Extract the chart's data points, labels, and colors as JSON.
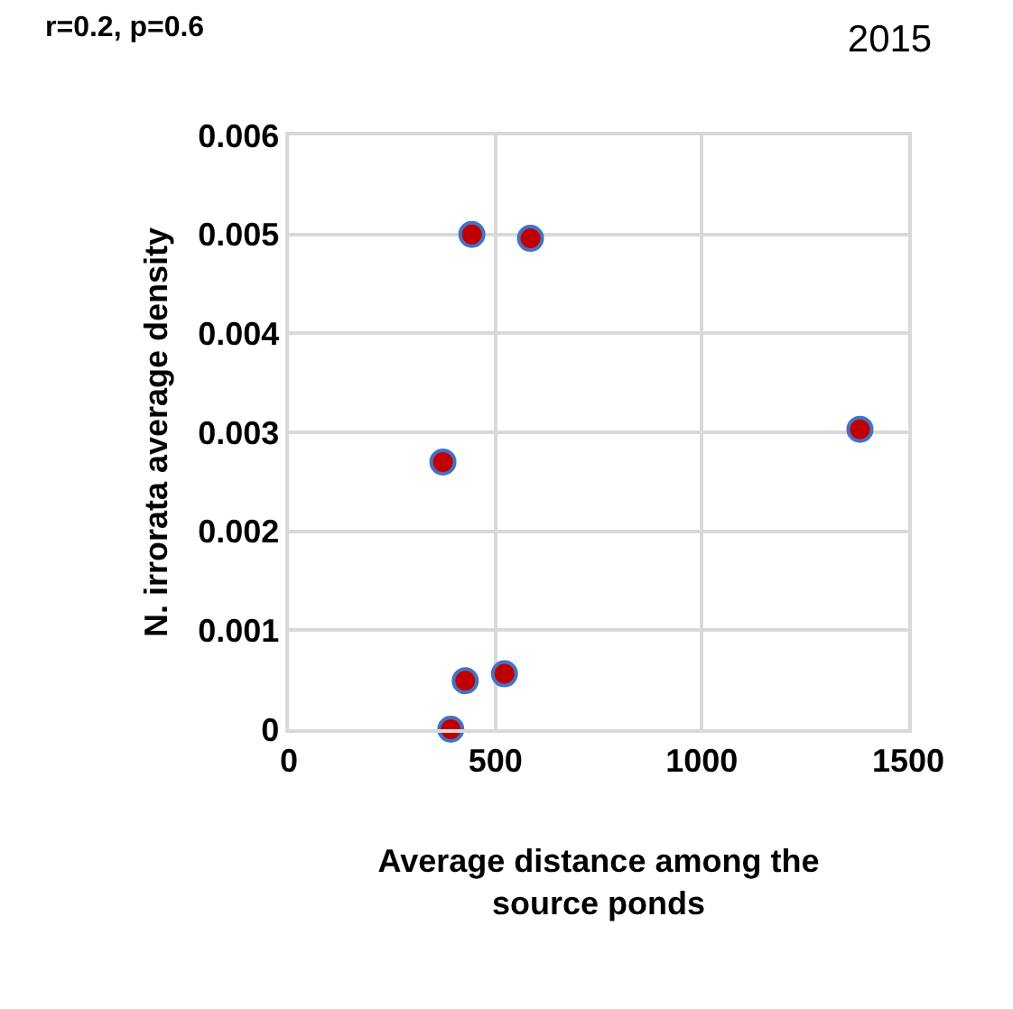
{
  "chart_data": {
    "type": "scatter",
    "title": "2015",
    "annotations": [
      "r=0.2, p=0.6"
    ],
    "xlabel": "Average distance among the\nsource ponds",
    "ylabel": "N. irrorata average density",
    "x": [
      443,
      585,
      1383,
      373,
      522,
      427,
      392
    ],
    "series": [
      {
        "color": "#c00000",
        "values": [
          0.005,
          0.00496,
          0.00303,
          0.0027,
          0.00056,
          0.00049,
          0
        ]
      }
    ],
    "xlim": [
      0,
      1500
    ],
    "xticks": [
      0,
      500,
      1000,
      1500
    ],
    "ylim": [
      0,
      0.006
    ],
    "yticks": [
      {
        "value": 0,
        "label": "0"
      },
      0.001,
      0.002,
      0.003,
      0.004,
      0.005,
      0.006
    ],
    "grid": true,
    "marker": "circle",
    "legend": false
  }
}
